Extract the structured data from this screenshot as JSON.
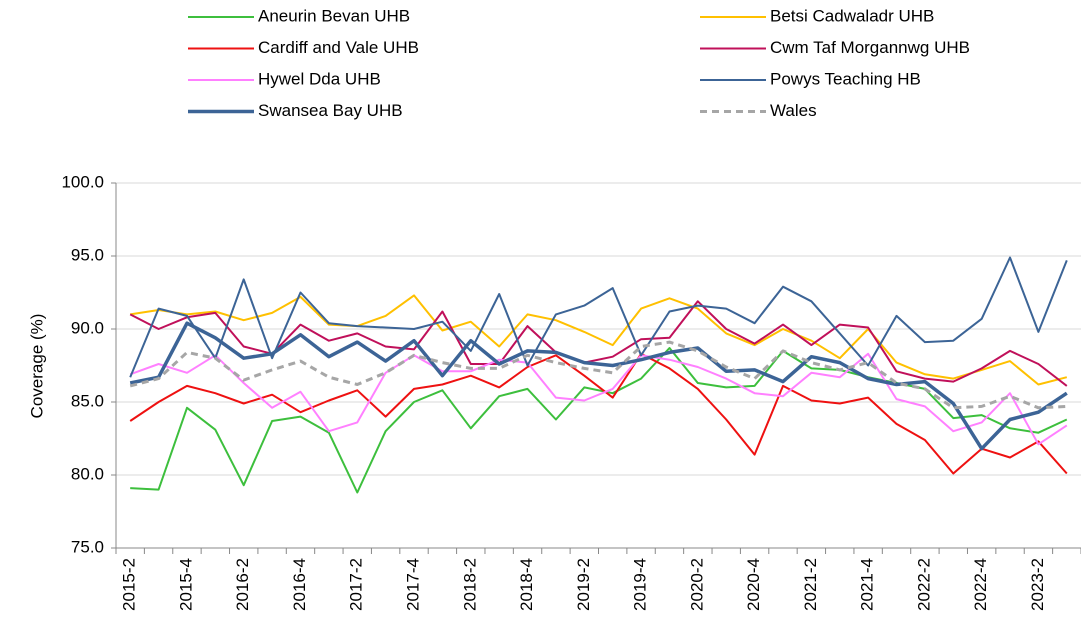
{
  "chart_data": {
    "type": "line",
    "ylabel": "Coverage (%)",
    "categories": [
      "2015-2",
      null,
      "2015-4",
      null,
      "2016-2",
      null,
      "2016-4",
      null,
      "2017-2",
      null,
      "2017-4",
      null,
      "2018-2",
      null,
      "2018-4",
      null,
      "2019-2",
      null,
      "2019-4",
      null,
      "2020-2",
      null,
      "2020-4",
      null,
      "2021-2",
      null,
      "2021-4",
      null,
      "2022-2",
      null,
      "2022-4",
      null,
      "2023-2",
      null
    ],
    "ylim": [
      75,
      100
    ],
    "yticks": [
      {
        "value": 75,
        "label": "75.0"
      },
      {
        "value": 80,
        "label": "80.0"
      },
      {
        "value": 85,
        "label": "85.0"
      },
      {
        "value": 90,
        "label": "90.0"
      },
      {
        "value": 95,
        "label": "95.0"
      },
      {
        "value": 100,
        "label": "100.0"
      }
    ],
    "grid": true,
    "legend": "top",
    "series": [
      {
        "name": "Aneurin Bevan UHB",
        "color": "#3dbf3d",
        "linewidth": 2,
        "dashed": false,
        "values": [
          79.1,
          79.0,
          84.6,
          83.1,
          79.3,
          83.7,
          84.0,
          82.9,
          78.8,
          83.0,
          85.0,
          85.8,
          83.2,
          85.4,
          85.9,
          83.8,
          86.0,
          85.6,
          86.6,
          88.7,
          86.3,
          86.0,
          86.1,
          88.5,
          87.3,
          87.2,
          86.7,
          86.3,
          85.9,
          83.9,
          84.1,
          83.2,
          82.9,
          83.8
        ]
      },
      {
        "name": "Betsi Cadwaladr UHB",
        "color": "#ffc000",
        "linewidth": 2,
        "dashed": false,
        "values": [
          91.0,
          91.3,
          91.0,
          91.2,
          90.6,
          91.1,
          92.2,
          90.3,
          90.2,
          90.9,
          92.3,
          89.9,
          90.5,
          88.8,
          91.0,
          90.6,
          89.8,
          88.9,
          91.4,
          92.1,
          91.4,
          89.7,
          88.9,
          90.0,
          89.2,
          88.0,
          90.0,
          87.7,
          86.9,
          86.6,
          87.2,
          87.8,
          86.2,
          86.7
        ]
      },
      {
        "name": "Cardiff and Vale UHB",
        "color": "#ee1111",
        "linewidth": 2,
        "dashed": false,
        "values": [
          83.7,
          85.0,
          86.1,
          85.6,
          84.9,
          85.5,
          84.3,
          85.1,
          85.8,
          84.0,
          85.9,
          86.2,
          86.8,
          86.0,
          87.4,
          88.2,
          86.8,
          85.3,
          88.3,
          87.3,
          85.9,
          83.8,
          81.4,
          86.1,
          85.1,
          84.9,
          85.3,
          83.5,
          82.4,
          80.1,
          81.8,
          81.2,
          82.3,
          80.1
        ]
      },
      {
        "name": "Cwm Taf Morgannwg UHB",
        "color": "#c0105a",
        "linewidth": 2,
        "dashed": false,
        "values": [
          91.0,
          90.0,
          90.8,
          91.1,
          88.8,
          88.3,
          90.3,
          89.2,
          89.7,
          88.8,
          88.6,
          91.2,
          87.6,
          87.6,
          90.2,
          88.4,
          87.7,
          88.1,
          89.3,
          89.4,
          91.9,
          90.0,
          89.0,
          90.3,
          88.9,
          90.3,
          90.1,
          87.1,
          86.6,
          86.4,
          87.3,
          88.5,
          87.6,
          86.1
        ]
      },
      {
        "name": "Hywel Dda UHB",
        "color": "#ff80ff",
        "linewidth": 2,
        "dashed": false,
        "values": [
          86.9,
          87.6,
          87.0,
          88.2,
          86.3,
          84.6,
          85.7,
          83.0,
          83.6,
          87.0,
          88.2,
          87.1,
          87.1,
          87.9,
          87.7,
          85.3,
          85.1,
          85.9,
          88.2,
          87.9,
          87.4,
          86.6,
          85.6,
          85.4,
          87.0,
          86.7,
          88.3,
          85.2,
          84.7,
          83.0,
          83.6,
          85.6,
          82.1,
          83.4
        ]
      },
      {
        "name": "Powys Teaching HB",
        "color": "#3c6496",
        "linewidth": 2,
        "dashed": false,
        "values": [
          86.7,
          91.4,
          90.9,
          88.0,
          93.4,
          88.0,
          92.5,
          90.4,
          90.2,
          90.1,
          90.0,
          90.5,
          88.5,
          92.4,
          87.5,
          91.0,
          91.6,
          92.8,
          88.2,
          91.2,
          91.6,
          91.4,
          90.4,
          92.9,
          91.9,
          89.7,
          87.5,
          90.9,
          89.1,
          89.2,
          90.7,
          94.9,
          89.8,
          94.7
        ]
      },
      {
        "name": "Swansea Bay UHB",
        "color": "#3c6496",
        "linewidth": 3.5,
        "dashed": false,
        "values": [
          86.3,
          86.7,
          90.4,
          89.4,
          88.0,
          88.3,
          89.6,
          88.1,
          89.1,
          87.8,
          89.2,
          86.8,
          89.2,
          87.6,
          88.5,
          88.4,
          87.7,
          87.5,
          87.9,
          88.4,
          88.7,
          87.1,
          87.2,
          86.4,
          88.1,
          87.7,
          86.6,
          86.2,
          86.4,
          84.9,
          81.8,
          83.8,
          84.3,
          85.6
        ]
      },
      {
        "name": "Wales",
        "color": "#a6a6a6",
        "linewidth": 3,
        "dashed": true,
        "values": [
          86.1,
          86.6,
          88.4,
          88.0,
          86.5,
          87.2,
          87.8,
          86.7,
          86.2,
          87.0,
          88.2,
          87.7,
          87.3,
          87.3,
          88.2,
          87.7,
          87.3,
          87.0,
          88.8,
          89.1,
          88.5,
          87.4,
          86.6,
          88.5,
          87.7,
          87.2,
          87.7,
          86.3,
          85.9,
          84.6,
          84.7,
          85.4,
          84.6,
          84.7
        ]
      }
    ]
  }
}
